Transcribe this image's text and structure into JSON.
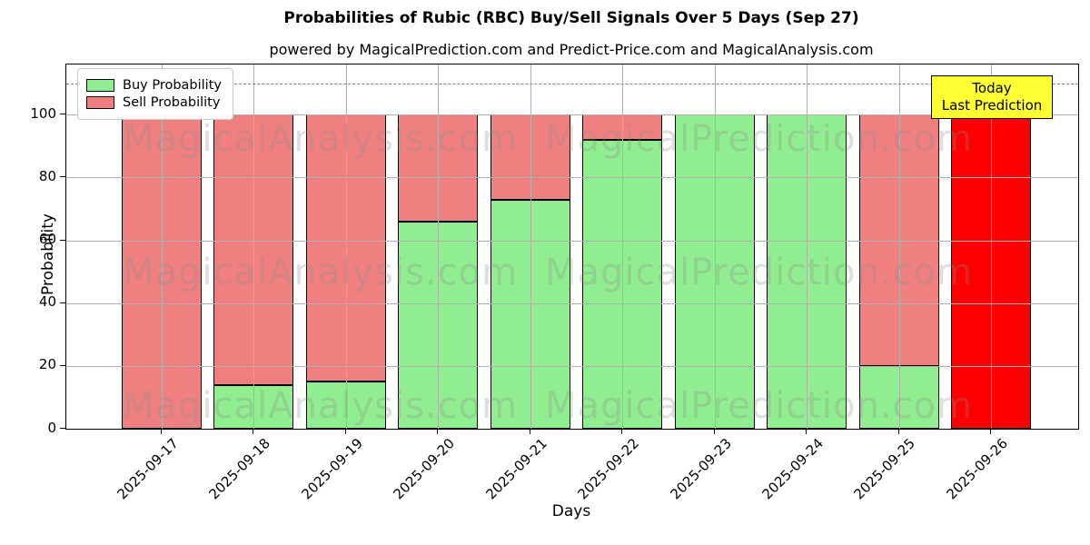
{
  "title": "Probabilities of Rubic (RBC) Buy/Sell Signals Over 5 Days (Sep 27)",
  "subtitle": "powered by MagicalPrediction.com and Predict-Price.com and MagicalAnalysis.com",
  "axes": {
    "xlabel": "Days",
    "ylabel": "Probability"
  },
  "legend": {
    "items": [
      {
        "label": "Buy Probability",
        "color": "#90EE90"
      },
      {
        "label": "Sell Probability",
        "color": "#F08080"
      }
    ]
  },
  "annotation_box": {
    "line1": "Today",
    "line2": "Last Prediction",
    "bg_color": "#FFFF33"
  },
  "watermarks": {
    "left": "MagicalAnalysis.com",
    "right": "MagicalPrediction.com"
  },
  "colors": {
    "buy": "#90EE90",
    "sell": "#F08080",
    "today_bar": "#FF0000",
    "grid": "#b0b0b0",
    "dashed_line": "#7f7f7f",
    "bar_edge": "#000000",
    "annotation_bg": "#FFFF33"
  },
  "chart_data": {
    "type": "bar",
    "stacked": true,
    "title": "Probabilities of Rubic (RBC) Buy/Sell Signals Over 5 Days (Sep 27)",
    "xlabel": "Days",
    "ylabel": "Probability",
    "categories": [
      "2025-09-17",
      "2025-09-18",
      "2025-09-19",
      "2025-09-20",
      "2025-09-21",
      "2025-09-22",
      "2025-09-23",
      "2025-09-24",
      "2025-09-25",
      "2025-09-26"
    ],
    "series": [
      {
        "name": "Buy Probability",
        "color": "#90EE90",
        "values": [
          0,
          14,
          15,
          66,
          73,
          92,
          100,
          100,
          20,
          0
        ]
      },
      {
        "name": "Sell Probability",
        "color": "#F08080",
        "values": [
          100,
          86,
          85,
          34,
          27,
          8,
          0,
          0,
          80,
          0
        ]
      },
      {
        "name": "Today (Last Prediction)",
        "color": "#FF0000",
        "values": [
          0,
          0,
          0,
          0,
          0,
          0,
          0,
          0,
          0,
          100
        ]
      }
    ],
    "ylim": [
      0,
      116
    ],
    "yticks": [
      0,
      20,
      40,
      60,
      80,
      100
    ],
    "dashed_line_y": 110,
    "grid": true,
    "legend_position": "upper left",
    "annotation": "Today / Last Prediction on 2025-09-26"
  }
}
